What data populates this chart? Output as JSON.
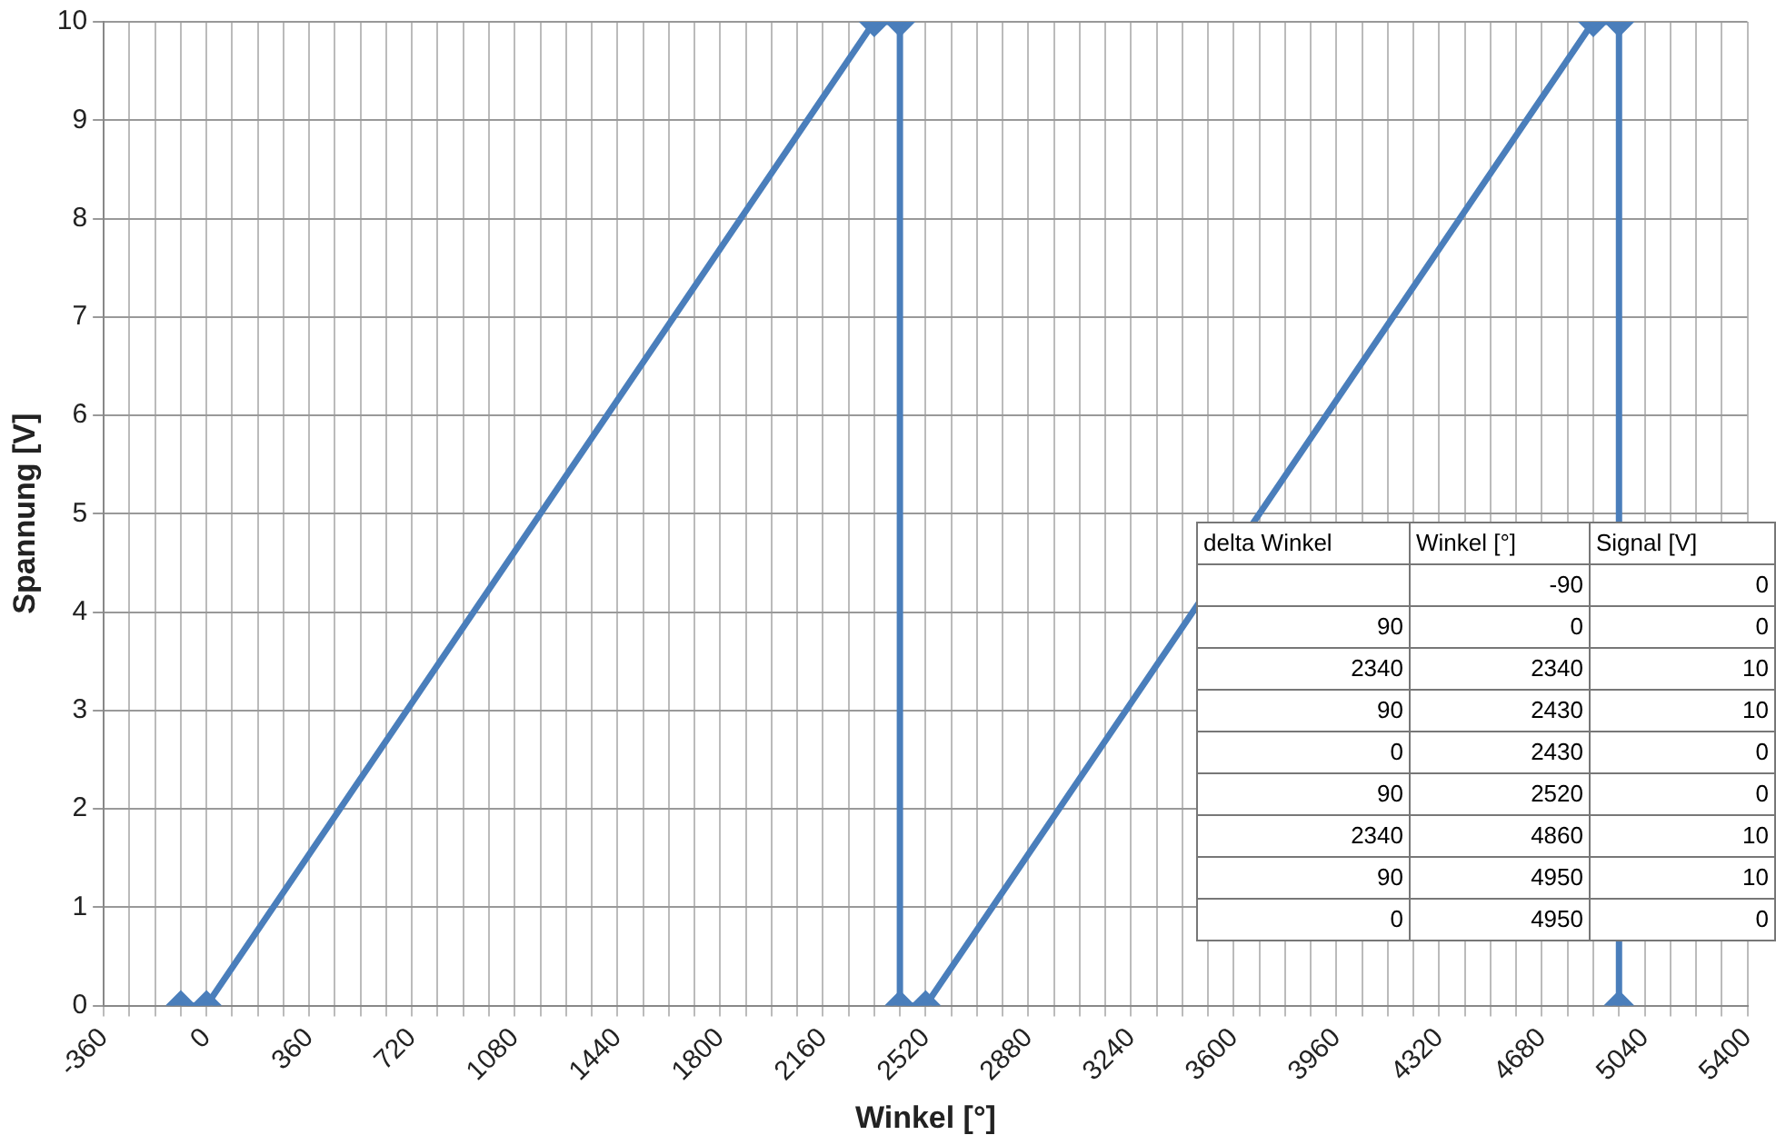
{
  "chart_data": [
    {
      "type": "line",
      "xlabel": "Winkel [°]",
      "ylabel": "Spannung [V]",
      "x": [
        -90,
        0,
        2340,
        2430,
        2430,
        2520,
        4860,
        4950,
        4950
      ],
      "series": [
        {
          "color": "#4a7ebb",
          "values": [
            0,
            0,
            10,
            10,
            0,
            0,
            10,
            10,
            0
          ]
        }
      ],
      "xlim": [
        -360,
        5400
      ],
      "xticks": [
        -360,
        {
          "value": -270,
          "label": null
        },
        {
          "value": -180,
          "label": null
        },
        {
          "value": -90,
          "label": null
        },
        0,
        {
          "value": 90,
          "label": null
        },
        {
          "value": 180,
          "label": null
        },
        {
          "value": 270,
          "label": null
        },
        360,
        {
          "value": 450,
          "label": null
        },
        {
          "value": 540,
          "label": null
        },
        {
          "value": 630,
          "label": null
        },
        720,
        {
          "value": 810,
          "label": null
        },
        {
          "value": 900,
          "label": null
        },
        {
          "value": 990,
          "label": null
        },
        1080,
        {
          "value": 1170,
          "label": null
        },
        {
          "value": 1260,
          "label": null
        },
        {
          "value": 1350,
          "label": null
        },
        1440,
        {
          "value": 1530,
          "label": null
        },
        {
          "value": 1620,
          "label": null
        },
        {
          "value": 1710,
          "label": null
        },
        1800,
        {
          "value": 1890,
          "label": null
        },
        {
          "value": 1980,
          "label": null
        },
        {
          "value": 2070,
          "label": null
        },
        2160,
        {
          "value": 2250,
          "label": null
        },
        {
          "value": 2340,
          "label": null
        },
        {
          "value": 2430,
          "label": null
        },
        2520,
        {
          "value": 2610,
          "label": null
        },
        {
          "value": 2700,
          "label": null
        },
        {
          "value": 2790,
          "label": null
        },
        2880,
        {
          "value": 2970,
          "label": null
        },
        {
          "value": 3060,
          "label": null
        },
        {
          "value": 3150,
          "label": null
        },
        3240,
        {
          "value": 3330,
          "label": null
        },
        {
          "value": 3420,
          "label": null
        },
        {
          "value": 3510,
          "label": null
        },
        3600,
        {
          "value": 3690,
          "label": null
        },
        {
          "value": 3780,
          "label": null
        },
        {
          "value": 3870,
          "label": null
        },
        3960,
        {
          "value": 4050,
          "label": null
        },
        {
          "value": 4140,
          "label": null
        },
        {
          "value": 4230,
          "label": null
        },
        4320,
        {
          "value": 4410,
          "label": null
        },
        {
          "value": 4500,
          "label": null
        },
        {
          "value": 4590,
          "label": null
        },
        4680,
        {
          "value": 4770,
          "label": null
        },
        {
          "value": 4860,
          "label": null
        },
        {
          "value": 4950,
          "label": null
        },
        5040,
        {
          "value": 5130,
          "label": null
        },
        {
          "value": 5220,
          "label": null
        },
        {
          "value": 5310,
          "label": null
        },
        5400
      ],
      "ylim": [
        0,
        10
      ],
      "yticks": [
        0,
        1,
        2,
        3,
        4,
        5,
        6,
        7,
        8,
        9,
        10
      ],
      "grid": true,
      "legend": false,
      "marker": "diamond",
      "line_style": "solid"
    },
    {
      "type": "other",
      "annotations": [
        "delta Winkel",
        "Winkel [°]",
        "Signal [V]",
        "-90",
        "0",
        "90",
        "0",
        "0",
        "2340",
        "2340",
        "10",
        "90",
        "2430",
        "10",
        "0",
        "2430",
        "0",
        "90",
        "2520",
        "0",
        "2340",
        "4860",
        "10",
        "90",
        "4950",
        "10",
        "0",
        "4950",
        "0"
      ]
    }
  ]
}
